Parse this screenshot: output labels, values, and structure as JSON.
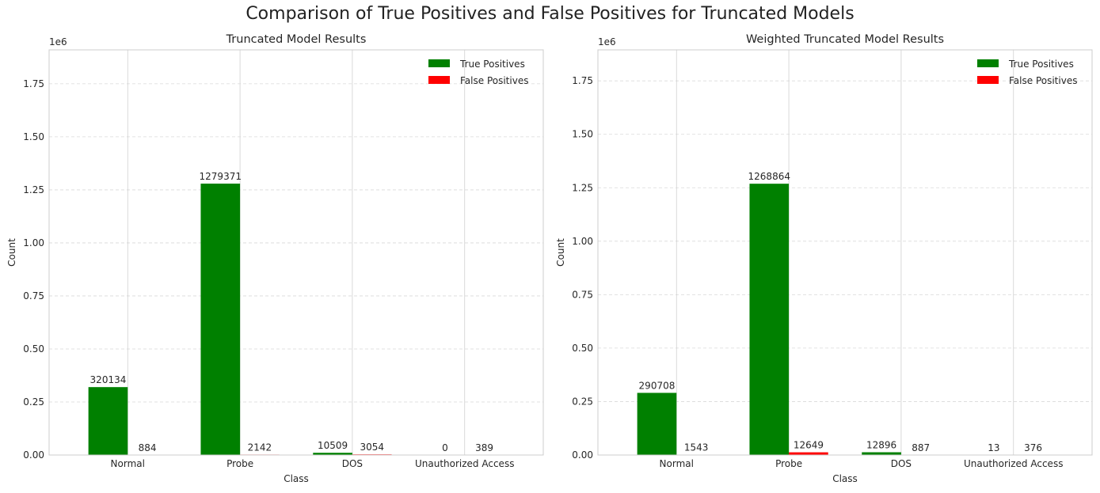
{
  "figure_title": "Comparison of True Positives and False Positives for Truncated Models",
  "colors": {
    "true_positives": "#008000",
    "false_positives": "#ff0000"
  },
  "chart_data": [
    {
      "type": "bar",
      "title": "Truncated Model Results",
      "xlabel": "Class",
      "ylabel": "Count",
      "offset_text": "1e6",
      "categories": [
        "Normal",
        "Probe",
        "DOS",
        "Unauthorized Access"
      ],
      "series": [
        {
          "name": "True Positives",
          "values": [
            320134,
            1279371,
            10509,
            0
          ]
        },
        {
          "name": "False Positives",
          "values": [
            884,
            2142,
            3054,
            389
          ]
        }
      ],
      "ylim": [
        0,
        1910000
      ],
      "yticks": [
        "0.00",
        "0.25",
        "0.50",
        "0.75",
        "1.00",
        "1.25",
        "1.50",
        "1.75"
      ],
      "grid": true,
      "legend": "top-right"
    },
    {
      "type": "bar",
      "title": "Weighted Truncated Model Results",
      "xlabel": "Class",
      "ylabel": "Count",
      "offset_text": "1e6",
      "categories": [
        "Normal",
        "Probe",
        "DOS",
        "Unauthorized Access"
      ],
      "series": [
        {
          "name": "True Positives",
          "values": [
            290708,
            1268864,
            12896,
            13
          ]
        },
        {
          "name": "False Positives",
          "values": [
            1543,
            12649,
            887,
            376
          ]
        }
      ],
      "ylim": [
        0,
        1895000
      ],
      "yticks": [
        "0.00",
        "0.25",
        "0.50",
        "0.75",
        "1.00",
        "1.25",
        "1.50",
        "1.75"
      ],
      "grid": true,
      "legend": "top-right"
    }
  ]
}
